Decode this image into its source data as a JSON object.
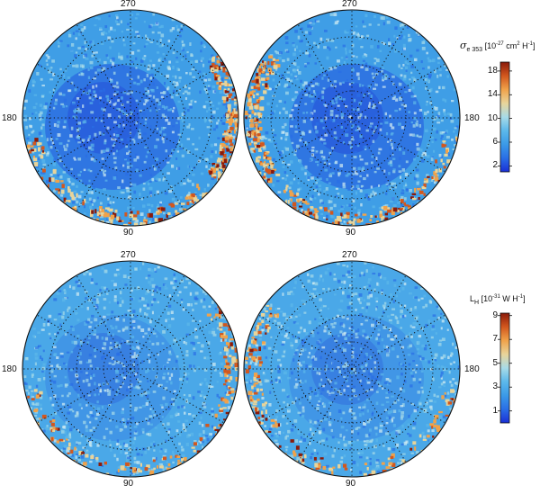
{
  "colors": {
    "scale": [
      "#1a2fd6",
      "#2a6ee6",
      "#3b9ae8",
      "#5cb8ea",
      "#a8dbe8",
      "#e8d49a",
      "#f0a24a",
      "#d2571e",
      "#8a1a0a"
    ]
  },
  "panels": [
    {
      "id": "top-row",
      "quantity": "sigma_e353",
      "colorbar": {
        "symbol": "σ",
        "subscript": "e 353",
        "unit_prefix": "[10",
        "unit_exp": "-27",
        "unit_mid": " cm",
        "unit_exp2": "2",
        "unit_mid2": " H",
        "unit_exp3": "-1",
        "unit_suffix": "]",
        "ticks": [
          "18",
          "14",
          "10",
          "6",
          "2"
        ],
        "range": [
          1,
          19.5
        ]
      },
      "hemispheres": [
        {
          "name": "left",
          "labels": {
            "top": "270",
            "bottom": "90",
            "side": "180"
          }
        },
        {
          "name": "right",
          "labels": {
            "top": "270",
            "bottom": "90",
            "side": "180"
          }
        }
      ]
    },
    {
      "id": "bottom-row",
      "quantity": "L_H",
      "colorbar": {
        "symbol": "L",
        "subscript": "H",
        "unit_prefix": "[10",
        "unit_exp": "-31",
        "unit_mid": " W H",
        "unit_exp2": "-1",
        "unit_mid2": "",
        "unit_exp3": "",
        "unit_suffix": "]",
        "ticks": [
          "9",
          "7",
          "5",
          "3",
          "1"
        ],
        "range": [
          0,
          9.2
        ]
      },
      "hemispheres": [
        {
          "name": "left",
          "labels": {
            "top": "270",
            "bottom": "90",
            "side": "180"
          }
        },
        {
          "name": "right",
          "labels": {
            "top": "270",
            "bottom": "90",
            "side": "180"
          }
        }
      ]
    }
  ]
}
